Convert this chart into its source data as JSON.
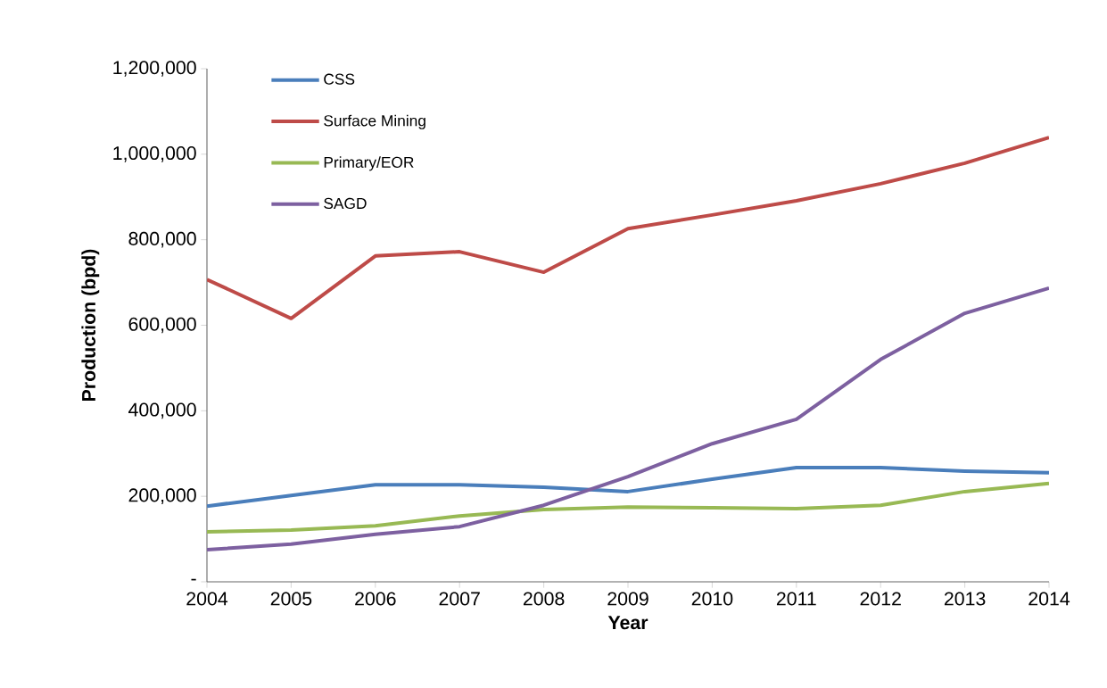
{
  "chart_data": {
    "type": "line",
    "xlabel": "Year",
    "ylabel": "Production (bpd)",
    "x": [
      2004,
      2005,
      2006,
      2007,
      2008,
      2009,
      2010,
      2011,
      2012,
      2013,
      2014
    ],
    "xlim": [
      2004,
      2014
    ],
    "xticks": [
      2004,
      2005,
      2006,
      2007,
      2008,
      2009,
      2010,
      2011,
      2012,
      2013,
      2014
    ],
    "ylim": [
      0,
      1200000
    ],
    "yticks": [
      {
        "value": 0,
        "label": "-"
      },
      {
        "value": 200000,
        "label": "200,000"
      },
      {
        "value": 400000,
        "label": "400,000"
      },
      {
        "value": 600000,
        "label": "600,000"
      },
      {
        "value": 800000,
        "label": "800,000"
      },
      {
        "value": 1000000,
        "label": "1,000,000"
      },
      {
        "value": 1200000,
        "label": "1,200,000"
      }
    ],
    "legend": "top left",
    "series": [
      {
        "name": "CSS",
        "color": "#4a7ebb",
        "values": [
          177000,
          202000,
          227000,
          227000,
          221000,
          211000,
          240000,
          267000,
          267000,
          259000,
          255000
        ]
      },
      {
        "name": "Surface Mining",
        "color": "#be4b48",
        "values": [
          707000,
          616000,
          762000,
          772000,
          724000,
          826000,
          858000,
          891000,
          931000,
          979000,
          1039000
        ]
      },
      {
        "name": "Primary/EOR",
        "color": "#98b954",
        "values": [
          117000,
          121000,
          131000,
          154000,
          169000,
          175000,
          173000,
          171000,
          179000,
          211000,
          230000
        ]
      },
      {
        "name": "SAGD",
        "color": "#7d60a0",
        "values": [
          75000,
          88000,
          111000,
          129000,
          179000,
          246000,
          323000,
          380000,
          520000,
          628000,
          687000
        ]
      }
    ]
  }
}
